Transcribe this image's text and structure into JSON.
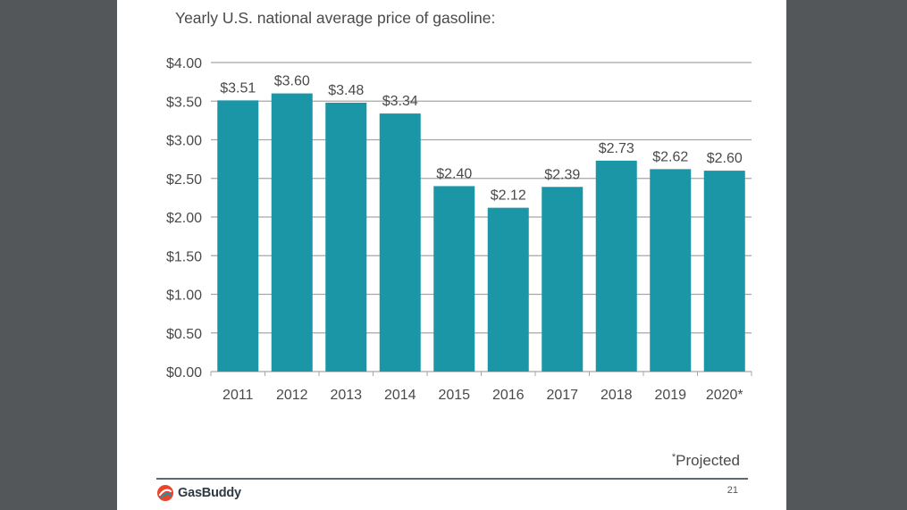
{
  "chart_data": {
    "type": "bar",
    "title": "Yearly U.S. national average price of gasoline:",
    "categories": [
      "2011",
      "2012",
      "2013",
      "2014",
      "2015",
      "2016",
      "2017",
      "2018",
      "2019",
      "2020*"
    ],
    "values": [
      3.51,
      3.6,
      3.48,
      3.34,
      2.4,
      2.12,
      2.39,
      2.73,
      2.62,
      2.6
    ],
    "data_labels": [
      "$3.51",
      "$3.60",
      "$3.48",
      "$3.34",
      "$2.40",
      "$2.12",
      "$2.39",
      "$2.73",
      "$2.62",
      "$2.60"
    ],
    "yticks": [
      0,
      0.5,
      1,
      1.5,
      2,
      2.5,
      3,
      3.5,
      4
    ],
    "ytick_labels": [
      "$0.00",
      "$0.50",
      "$1.00",
      "$1.50",
      "$2.00",
      "$2.50",
      "$3.00",
      "$3.50",
      "$4.00"
    ],
    "ylim": [
      0,
      4
    ],
    "xlabel": "",
    "ylabel": "",
    "grid": true,
    "legend": "none",
    "bar_color": "#1a96a6",
    "gridline_color": "#a6a6a6"
  },
  "footnote": {
    "marker": "*",
    "text": "Projected"
  },
  "footer": {
    "brand": "GasBuddy",
    "page_number": "21",
    "rule_color": "#5a6a75"
  }
}
